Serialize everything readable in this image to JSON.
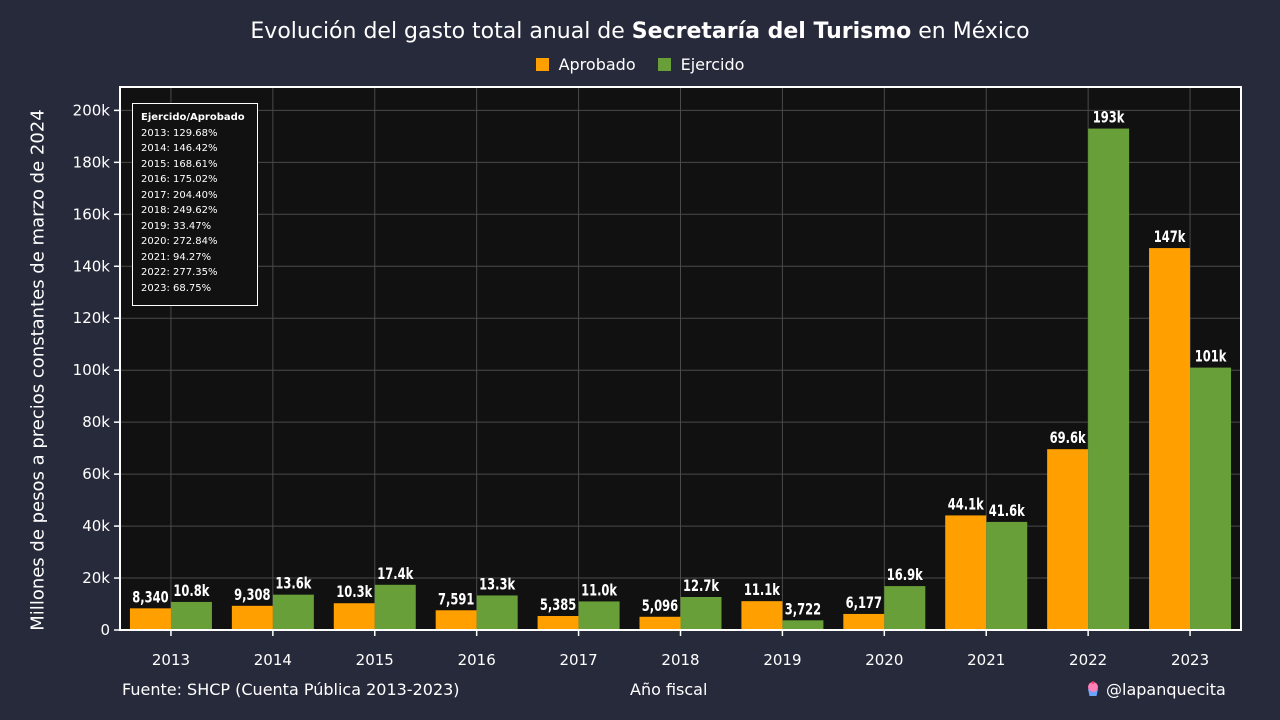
{
  "title": {
    "prefix": "Evolución del gasto total anual de ",
    "bold": "Secretaría del Turismo",
    "suffix": " en México"
  },
  "legend": [
    {
      "label": "Aprobado",
      "color": "#ffa000"
    },
    {
      "label": "Ejercido",
      "color": "#689f38"
    }
  ],
  "ylabel": "Millones de pesos a precios constantes de marzo de 2024",
  "xlabel": "Año fiscal",
  "source": "Fuente: SHCP (Cuenta Pública 2013-2023)",
  "handle": "@lapanquecita",
  "handle_icon": "cupcake-icon",
  "ratio_box": {
    "header": "Ejercido/Aprobado",
    "lines": [
      "2013: 129.68%",
      "2014: 146.42%",
      "2015: 168.61%",
      "2016: 175.02%",
      "2017: 204.40%",
      "2018: 249.62%",
      "2019: 33.47%",
      "2020: 272.84%",
      "2021: 94.27%",
      "2022: 277.35%",
      "2023: 68.75%"
    ]
  },
  "chart_data": {
    "type": "bar",
    "categories": [
      "2013",
      "2014",
      "2015",
      "2016",
      "2017",
      "2018",
      "2019",
      "2020",
      "2021",
      "2022",
      "2023"
    ],
    "series": [
      {
        "name": "Aprobado",
        "color": "#ffa000",
        "values": [
          8340,
          9308,
          10300,
          7591,
          5385,
          5096,
          11100,
          6177,
          44100,
          69600,
          147000
        ],
        "labels": [
          "8,340",
          "9,308",
          "10.3k",
          "7,591",
          "5,385",
          "5,096",
          "11.1k",
          "6,177",
          "44.1k",
          "69.6k",
          "147k"
        ]
      },
      {
        "name": "Ejercido",
        "color": "#689f38",
        "values": [
          10800,
          13600,
          17400,
          13300,
          11000,
          12700,
          3722,
          16900,
          41600,
          193000,
          101000
        ],
        "labels": [
          "10.8k",
          "13.6k",
          "17.4k",
          "13.3k",
          "11.0k",
          "12.7k",
          "3,722",
          "16.9k",
          "41.6k",
          "193k",
          "101k"
        ]
      }
    ],
    "ylim": [
      0,
      209000
    ],
    "yticks": [
      0,
      20000,
      40000,
      60000,
      80000,
      100000,
      120000,
      140000,
      160000,
      180000,
      200000
    ],
    "ytick_labels": [
      "0",
      "20k",
      "40k",
      "60k",
      "80k",
      "100k",
      "120k",
      "140k",
      "160k",
      "180k",
      "200k"
    ],
    "grid": true
  }
}
